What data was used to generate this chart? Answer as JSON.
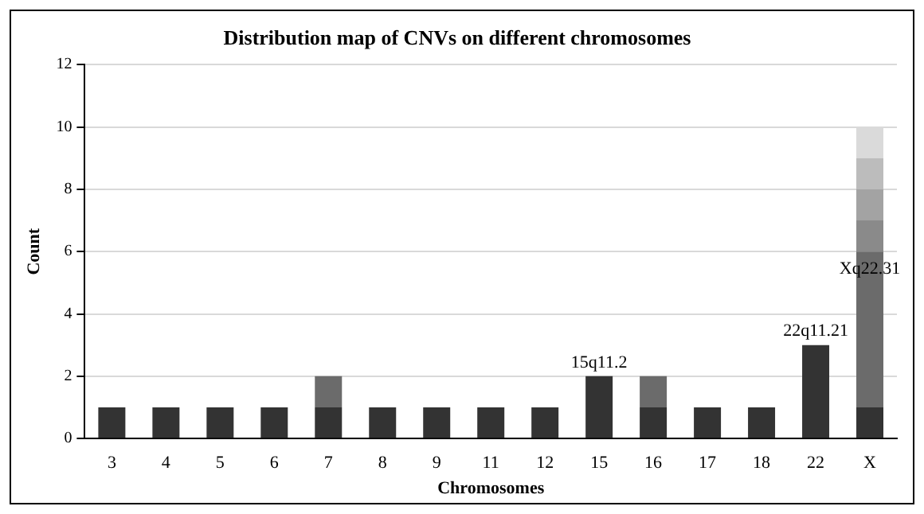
{
  "chart_data": {
    "type": "bar",
    "stacked": true,
    "title": "Distribution map of CNVs on different chromosomes",
    "xlabel": "Chromosomes",
    "ylabel": "Count",
    "categories": [
      "3",
      "4",
      "5",
      "6",
      "7",
      "8",
      "9",
      "11",
      "12",
      "15",
      "16",
      "17",
      "18",
      "22",
      "X"
    ],
    "series": [
      {
        "color": "#333333",
        "values": [
          1,
          1,
          1,
          1,
          1,
          1,
          1,
          1,
          1,
          2,
          1,
          1,
          1,
          3,
          1
        ]
      },
      {
        "color": "#6b6b6b",
        "values": [
          null,
          null,
          null,
          null,
          1,
          null,
          null,
          null,
          null,
          null,
          1,
          null,
          null,
          null,
          5
        ]
      },
      {
        "color": "#8a8a8a",
        "values": [
          null,
          null,
          null,
          null,
          null,
          null,
          null,
          null,
          null,
          null,
          null,
          null,
          null,
          null,
          1
        ]
      },
      {
        "color": "#a3a3a3",
        "values": [
          null,
          null,
          null,
          null,
          null,
          null,
          null,
          null,
          null,
          null,
          null,
          null,
          null,
          null,
          1
        ]
      },
      {
        "color": "#bcbcbc",
        "values": [
          null,
          null,
          null,
          null,
          null,
          null,
          null,
          null,
          null,
          null,
          null,
          null,
          null,
          null,
          1
        ]
      },
      {
        "color": "#dadada",
        "values": [
          null,
          null,
          null,
          null,
          null,
          null,
          null,
          null,
          null,
          null,
          null,
          null,
          null,
          null,
          1
        ]
      }
    ],
    "ylim": [
      0,
      12
    ],
    "yticks": [
      0,
      2,
      4,
      6,
      8,
      10,
      12
    ],
    "grid": "y",
    "legend": false,
    "annotations": [
      {
        "text": "15q11.2",
        "x": "15",
        "y": 2
      },
      {
        "text": "22q11.21",
        "x": "22",
        "y": 3
      },
      "Xq22.31"
    ]
  }
}
